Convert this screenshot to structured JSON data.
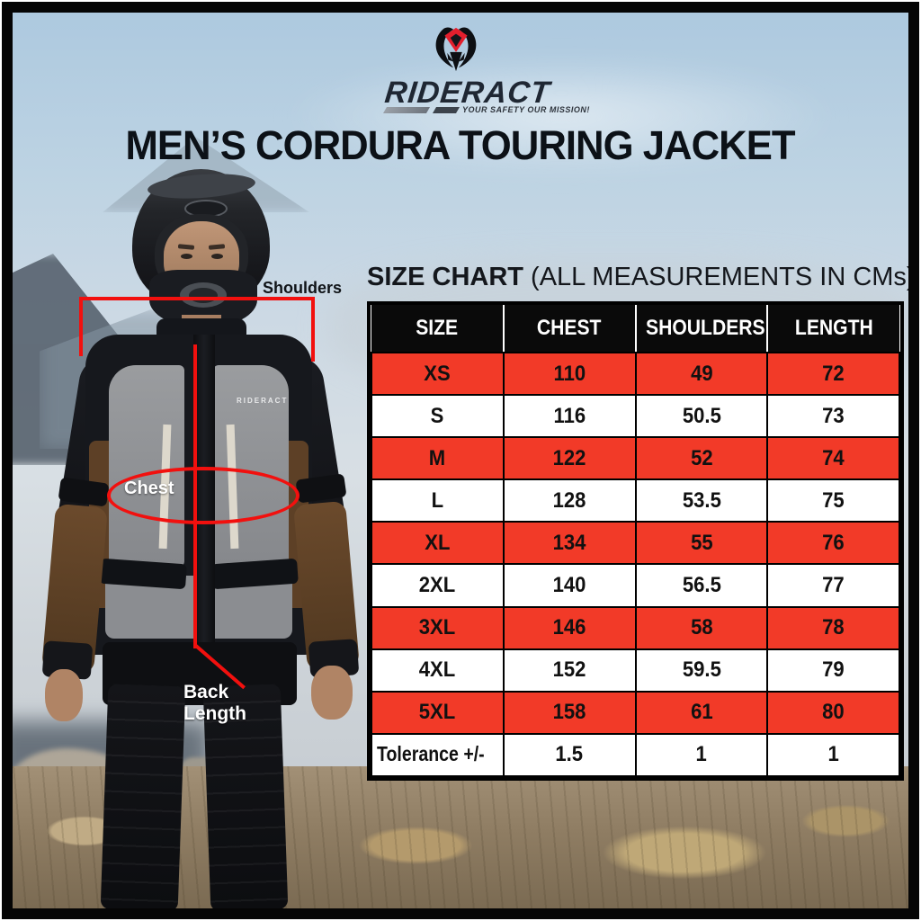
{
  "logo": {
    "brand": "RIDERACT",
    "tagline": "YOUR SAFETY OUR MISSION!"
  },
  "title": "MEN’S CORDURA TOURING JACKET",
  "size_chart_heading": {
    "bold": "SIZE CHART",
    "rest": " (ALL MEASUREMENTS IN CMs)"
  },
  "table": {
    "headers": [
      "SIZE",
      "CHEST",
      "SHOULDERS",
      "LENGTH"
    ],
    "rows": [
      {
        "size": "XS",
        "chest": "110",
        "shoulders": "49",
        "length": "72"
      },
      {
        "size": "S",
        "chest": "116",
        "shoulders": "50.5",
        "length": "73"
      },
      {
        "size": "M",
        "chest": "122",
        "shoulders": "52",
        "length": "74"
      },
      {
        "size": "L",
        "chest": "128",
        "shoulders": "53.5",
        "length": "75"
      },
      {
        "size": "XL",
        "chest": "134",
        "shoulders": "55",
        "length": "76"
      },
      {
        "size": "2XL",
        "chest": "140",
        "shoulders": "56.5",
        "length": "77"
      },
      {
        "size": "3XL",
        "chest": "146",
        "shoulders": "58",
        "length": "78"
      },
      {
        "size": "4XL",
        "chest": "152",
        "shoulders": "59.5",
        "length": "79"
      },
      {
        "size": "5XL",
        "chest": "158",
        "shoulders": "61",
        "length": "80"
      },
      {
        "size": "Tolerance +/-",
        "chest": "1.5",
        "shoulders": "1",
        "length": "1"
      }
    ]
  },
  "annotations": {
    "shoulders": "Shoulders",
    "chest": "Chest",
    "back_length": "Back Length"
  },
  "jacket_brand": "RIDERACT",
  "colors": {
    "row_highlight": "#f23a28",
    "header_bg": "#0a0a0a",
    "annotation_red": "#f2100e",
    "frame": "#050505"
  },
  "chart_data": {
    "type": "table",
    "title": "SIZE CHART (ALL MEASUREMENTS IN CMs)",
    "columns": [
      "SIZE",
      "CHEST",
      "SHOULDERS",
      "LENGTH"
    ],
    "rows": [
      [
        "XS",
        110,
        49,
        72
      ],
      [
        "S",
        116,
        50.5,
        73
      ],
      [
        "M",
        122,
        52,
        74
      ],
      [
        "L",
        128,
        53.5,
        75
      ],
      [
        "XL",
        134,
        55,
        76
      ],
      [
        "2XL",
        140,
        56.5,
        77
      ],
      [
        "3XL",
        146,
        58,
        78
      ],
      [
        "4XL",
        152,
        59.5,
        79
      ],
      [
        "5XL",
        158,
        61,
        80
      ],
      [
        "Tolerance +/-",
        1.5,
        1,
        1
      ]
    ]
  }
}
